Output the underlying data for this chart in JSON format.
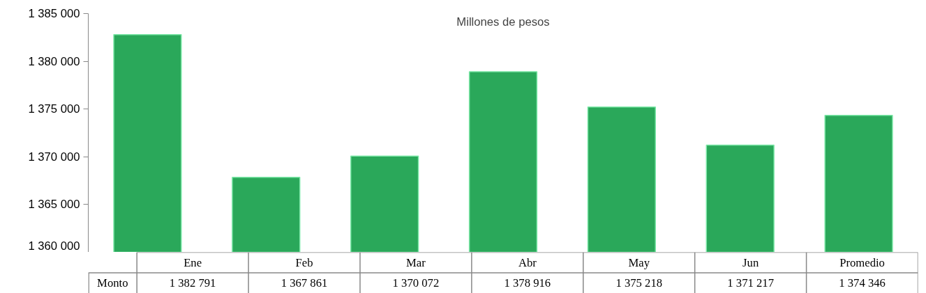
{
  "chart_data": {
    "type": "bar",
    "title": "Millones de pesos",
    "categories": [
      "Ene",
      "Feb",
      "Mar",
      "Abr",
      "May",
      "Jun",
      "Promedio"
    ],
    "series": [
      {
        "name": "Monto",
        "color": "#2aa85a",
        "values": [
          1382791,
          1367861,
          1370072,
          1378916,
          1375218,
          1371217,
          1374346
        ]
      }
    ],
    "ylim": [
      1360000,
      1385000
    ],
    "yticks": [
      1360000,
      1365000,
      1370000,
      1375000,
      1380000,
      1385000
    ],
    "data_labels": true
  }
}
